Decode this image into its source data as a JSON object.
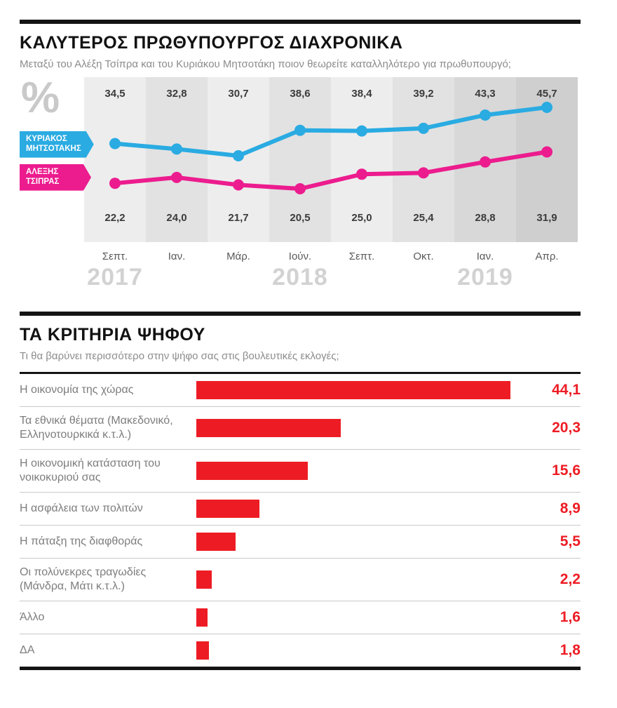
{
  "chart_data": [
    {
      "type": "line",
      "title": "ΚΑΛΥΤΕΡΟΣ ΠΡΩΘΥΠΟΥΡΓΟΣ ΔΙΑΧΡΟΝΙΚΑ",
      "subtitle": "Μεταξύ του Αλέξη Τσίπρα και του Κυριάκου Μητσοτάκη ποιον θεωρείτε καταλληλότερο για πρωθυπουργό;",
      "unit": "%",
      "x_labels": [
        "Σεπτ.",
        "Ιαν.",
        "Μάρ.",
        "Ιούν.",
        "Σεπτ.",
        "Οκτ.",
        "Ιαν.",
        "Απρ."
      ],
      "year_labels": [
        {
          "label": "2017",
          "column": 0
        },
        {
          "label": "2018",
          "column": 3
        },
        {
          "label": "2019",
          "column": 6
        }
      ],
      "ylim": [
        20.5,
        45.7
      ],
      "grid": false,
      "legend_position": "left",
      "column_colors": [
        "#ededed",
        "#e2e2e2",
        "#ededed",
        "#e2e2e2",
        "#ededed",
        "#e2e2e2",
        "#d8d8d8",
        "#cfcfcf"
      ],
      "series": [
        {
          "name": "ΚΥΡΙΑΚΟΣ ΜΗΤΣΟΤΑΚΗΣ",
          "label_line1": "ΚΥΡΙΑΚΟΣ",
          "label_line2": "ΜΗΤΣΟΤΑΚΗΣ",
          "color": "#2aabe2",
          "values": [
            34.5,
            32.8,
            30.7,
            38.6,
            38.4,
            39.2,
            43.3,
            45.7
          ],
          "labels": [
            "34,5",
            "32,8",
            "30,7",
            "38,6",
            "38,4",
            "39,2",
            "43,3",
            "45,7"
          ]
        },
        {
          "name": "ΑΛΕΞΗΣ ΤΣΙΠΡΑΣ",
          "label_line1": "ΑΛΕΞΗΣ",
          "label_line2": "ΤΣΙΠΡΑΣ",
          "color": "#ec1c8e",
          "values": [
            22.2,
            24.0,
            21.7,
            20.5,
            25.0,
            25.4,
            28.8,
            31.9
          ],
          "labels": [
            "22,2",
            "24,0",
            "21,7",
            "20,5",
            "25,0",
            "25,4",
            "28,8",
            "31,9"
          ]
        }
      ]
    },
    {
      "type": "bar",
      "title": "ΤΑ ΚΡΙΤΗΡΙΑ ΨΗΦΟΥ",
      "subtitle": "Τι θα βαρύνει περισσότερο στην ψήφο σας στις βουλευτικές εκλογές;",
      "color": "#ed1c24",
      "orientation": "horizontal",
      "xlim": [
        0,
        48
      ],
      "categories": [
        "Η οικονομία της χώρας",
        "Τα εθνικά θέματα (Μακεδονικό, Ελληνοτουρκικά κ.τ.λ.)",
        "Η οικονομική κατάσταση του νοικοκυριού σας",
        "Η ασφάλεια των πολιτών",
        "Η πάταξη της διαφθοράς",
        "Οι πολύνεκρες τραγωδίες (Μάνδρα, Μάτι κ.τ.λ.)",
        "Άλλο",
        "ΔΑ"
      ],
      "values": [
        44.1,
        20.3,
        15.6,
        8.9,
        5.5,
        2.2,
        1.6,
        1.8
      ],
      "value_labels": [
        "44,1",
        "20,3",
        "15,6",
        "8,9",
        "5,5",
        "2,2",
        "1,6",
        "1,8"
      ]
    }
  ]
}
